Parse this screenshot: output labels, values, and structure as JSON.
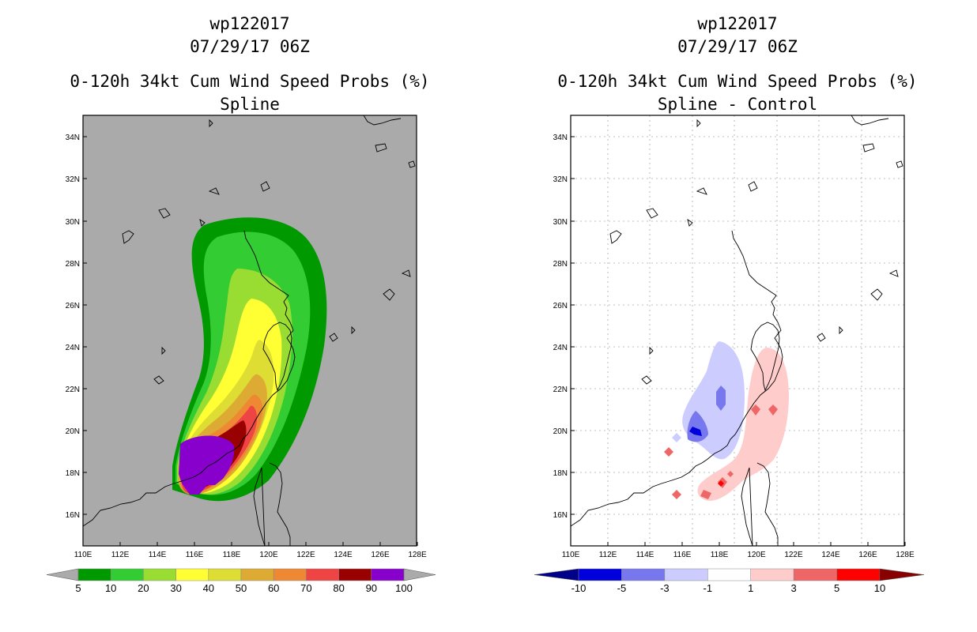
{
  "left_panel": {
    "storm_id": "wp122017",
    "datetime": "07/29/17 06Z",
    "product_title": "0-120h 34kt Cum Wind Speed Probs (%)",
    "subtitle": "Spline",
    "colorbar": {
      "labels": [
        "5",
        "10",
        "20",
        "30",
        "40",
        "50",
        "60",
        "70",
        "80",
        "90",
        "100"
      ],
      "colors": [
        "#009900",
        "#33cc33",
        "#99dd33",
        "#ffff33",
        "#dddd33",
        "#ddaa33",
        "#ee8833",
        "#ee4444",
        "#990000",
        "#8800cc"
      ],
      "extend_left_color": "#aaaaaa",
      "extend_right_color": "#aaaaaa"
    }
  },
  "right_panel": {
    "storm_id": "wp122017",
    "datetime": "07/29/17 06Z",
    "product_title": "0-120h 34kt Cum Wind Speed Probs (%)",
    "subtitle": "Spline - Control",
    "colorbar": {
      "labels": [
        "-10",
        "-5",
        "-3",
        "-1",
        "1",
        "3",
        "5",
        "10"
      ],
      "colors": [
        "#0000dd",
        "#7777ee",
        "#ccccff",
        "#ffffff",
        "#ffcccc",
        "#ee6666",
        "#ff0000"
      ],
      "extend_left_color": "#000088",
      "extend_right_color": "#880000"
    }
  },
  "axes": {
    "lon_labels": [
      "110E",
      "112E",
      "114E",
      "116E",
      "118E",
      "120E",
      "122E",
      "124E",
      "126E",
      "128E"
    ],
    "lat_labels": [
      "34N",
      "32N",
      "30N",
      "28N",
      "26N",
      "24N",
      "22N",
      "20N",
      "18N",
      "16N"
    ]
  },
  "map_colors": {
    "left_background": "#aaaaaa",
    "right_background": "#ffffff",
    "coast": "#000000"
  }
}
